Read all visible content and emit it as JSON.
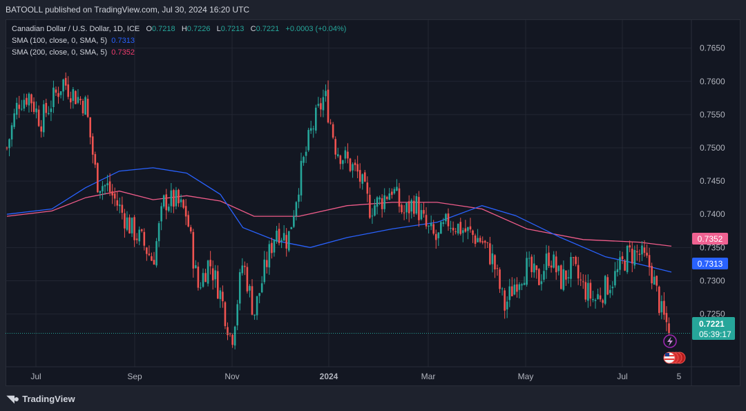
{
  "header": {
    "published_text": "BATOOLL published on TradingView.com, Jul 30, 2024 16:20 UTC"
  },
  "legend": {
    "symbol": "Canadian Dollar / U.S. Dollar, 1D, ICE",
    "o_label": "O",
    "o_value": "0.7218",
    "h_label": "H",
    "h_value": "0.7226",
    "l_label": "L",
    "l_value": "0.7213",
    "c_label": "C",
    "c_value": "0.7221",
    "change": "+0.0003 (+0.04%)",
    "sma100_label": "SMA (100, close, 0, SMA, 5)",
    "sma100_value": "0.7313",
    "sma200_label": "SMA (200, close, 0, SMA, 5)",
    "sma200_value": "0.7352"
  },
  "price_labels": {
    "sma200": "0.7352",
    "sma100": "0.7313",
    "last_price": "0.7221",
    "countdown": "05:39:17"
  },
  "footer": {
    "brand": "TradingView",
    "logo_icon": "tradingview-logo-icon"
  },
  "colors": {
    "up": "#26a69a",
    "down": "#ef5350",
    "sma100": "#2962ff",
    "sma200": "#f05c8a",
    "background": "#131722",
    "grid": "#232733",
    "text": "#d1d4dc"
  },
  "chart_data": {
    "type": "candlestick",
    "title": "Canadian Dollar / U.S. Dollar, 1D, ICE",
    "x_tick_labels": [
      "Jul",
      "Sep",
      "Nov",
      "2024",
      "Mar",
      "May",
      "Jul",
      "5"
    ],
    "y_tick_labels": [
      "0.7650",
      "0.7600",
      "0.7550",
      "0.7500",
      "0.7450",
      "0.7400",
      "0.7350",
      "0.7300",
      "0.7250"
    ],
    "ylim": [
      0.7182,
      0.7685
    ],
    "grid": true,
    "close_path": [
      [
        "2023-06-12",
        0.75
      ],
      [
        "2023-06-19",
        0.757
      ],
      [
        "2023-06-26",
        0.758
      ],
      [
        "2023-07-03",
        0.754
      ],
      [
        "2023-07-10",
        0.757
      ],
      [
        "2023-07-17",
        0.76
      ],
      [
        "2023-07-24",
        0.758
      ],
      [
        "2023-07-31",
        0.7565
      ],
      [
        "2023-08-07",
        0.745
      ],
      [
        "2023-08-14",
        0.744
      ],
      [
        "2023-08-21",
        0.741
      ],
      [
        "2023-08-28",
        0.738
      ],
      [
        "2023-09-04",
        0.736
      ],
      [
        "2023-09-11",
        0.733
      ],
      [
        "2023-09-18",
        0.742
      ],
      [
        "2023-09-25",
        0.742
      ],
      [
        "2023-10-02",
        0.74
      ],
      [
        "2023-10-09",
        0.729
      ],
      [
        "2023-10-16",
        0.733
      ],
      [
        "2023-10-23",
        0.728
      ],
      [
        "2023-10-30",
        0.721
      ],
      [
        "2023-11-06",
        0.733
      ],
      [
        "2023-11-13",
        0.725
      ],
      [
        "2023-11-20",
        0.732
      ],
      [
        "2023-11-27",
        0.738
      ],
      [
        "2023-12-04",
        0.736
      ],
      [
        "2023-12-11",
        0.745
      ],
      [
        "2023-12-18",
        0.752
      ],
      [
        "2023-12-27",
        0.758
      ],
      [
        "2024-01-03",
        0.75
      ],
      [
        "2024-01-10",
        0.748
      ],
      [
        "2024-01-17",
        0.746
      ],
      [
        "2024-01-24",
        0.741
      ],
      [
        "2024-01-31",
        0.742
      ],
      [
        "2024-02-07",
        0.744
      ],
      [
        "2024-02-14",
        0.74
      ],
      [
        "2024-02-21",
        0.742
      ],
      [
        "2024-02-28",
        0.738
      ],
      [
        "2024-03-06",
        0.736
      ],
      [
        "2024-03-13",
        0.739
      ],
      [
        "2024-03-20",
        0.738
      ],
      [
        "2024-03-27",
        0.737
      ],
      [
        "2024-04-03",
        0.736
      ],
      [
        "2024-04-10",
        0.733
      ],
      [
        "2024-04-17",
        0.726
      ],
      [
        "2024-04-24",
        0.73
      ],
      [
        "2024-05-01",
        0.732
      ],
      [
        "2024-05-08",
        0.73
      ],
      [
        "2024-05-15",
        0.734
      ],
      [
        "2024-05-22",
        0.73
      ],
      [
        "2024-05-29",
        0.732
      ],
      [
        "2024-06-05",
        0.729
      ],
      [
        "2024-06-12",
        0.727
      ],
      [
        "2024-06-19",
        0.729
      ],
      [
        "2024-06-26",
        0.731
      ],
      [
        "2024-07-03",
        0.734
      ],
      [
        "2024-07-10",
        0.734
      ],
      [
        "2024-07-17",
        0.732
      ],
      [
        "2024-07-24",
        0.725
      ],
      [
        "2024-07-30",
        0.7221
      ]
    ],
    "sma100_path": [
      [
        "2023-06-12",
        0.74
      ],
      [
        "2023-07-10",
        0.7408
      ],
      [
        "2023-07-31",
        0.744
      ],
      [
        "2023-08-21",
        0.7465
      ],
      [
        "2023-09-11",
        0.747
      ],
      [
        "2023-10-02",
        0.7462
      ],
      [
        "2023-10-23",
        0.743
      ],
      [
        "2023-11-06",
        0.738
      ],
      [
        "2023-11-27",
        0.736
      ],
      [
        "2023-12-18",
        0.735
      ],
      [
        "2024-01-10",
        0.7365
      ],
      [
        "2024-02-07",
        0.7378
      ],
      [
        "2024-03-06",
        0.7388
      ],
      [
        "2024-04-03",
        0.7413
      ],
      [
        "2024-04-24",
        0.7398
      ],
      [
        "2024-05-22",
        0.7365
      ],
      [
        "2024-06-19",
        0.7336
      ],
      [
        "2024-07-10",
        0.7325
      ],
      [
        "2024-07-30",
        0.7313
      ]
    ],
    "sma200_path": [
      [
        "2023-06-12",
        0.7397
      ],
      [
        "2023-07-10",
        0.7405
      ],
      [
        "2023-07-31",
        0.7425
      ],
      [
        "2023-08-21",
        0.7435
      ],
      [
        "2023-09-11",
        0.7422
      ],
      [
        "2023-10-02",
        0.7428
      ],
      [
        "2023-10-23",
        0.742
      ],
      [
        "2023-11-13",
        0.7397
      ],
      [
        "2023-12-11",
        0.7397
      ],
      [
        "2024-01-10",
        0.7413
      ],
      [
        "2024-02-07",
        0.7418
      ],
      [
        "2024-03-06",
        0.7418
      ],
      [
        "2024-04-03",
        0.7408
      ],
      [
        "2024-05-01",
        0.7378
      ],
      [
        "2024-06-05",
        0.7362
      ],
      [
        "2024-07-10",
        0.7358
      ],
      [
        "2024-07-30",
        0.7352
      ]
    ],
    "sma100_last": 0.7313,
    "sma200_last": 0.7352,
    "last_close": 0.7221
  }
}
